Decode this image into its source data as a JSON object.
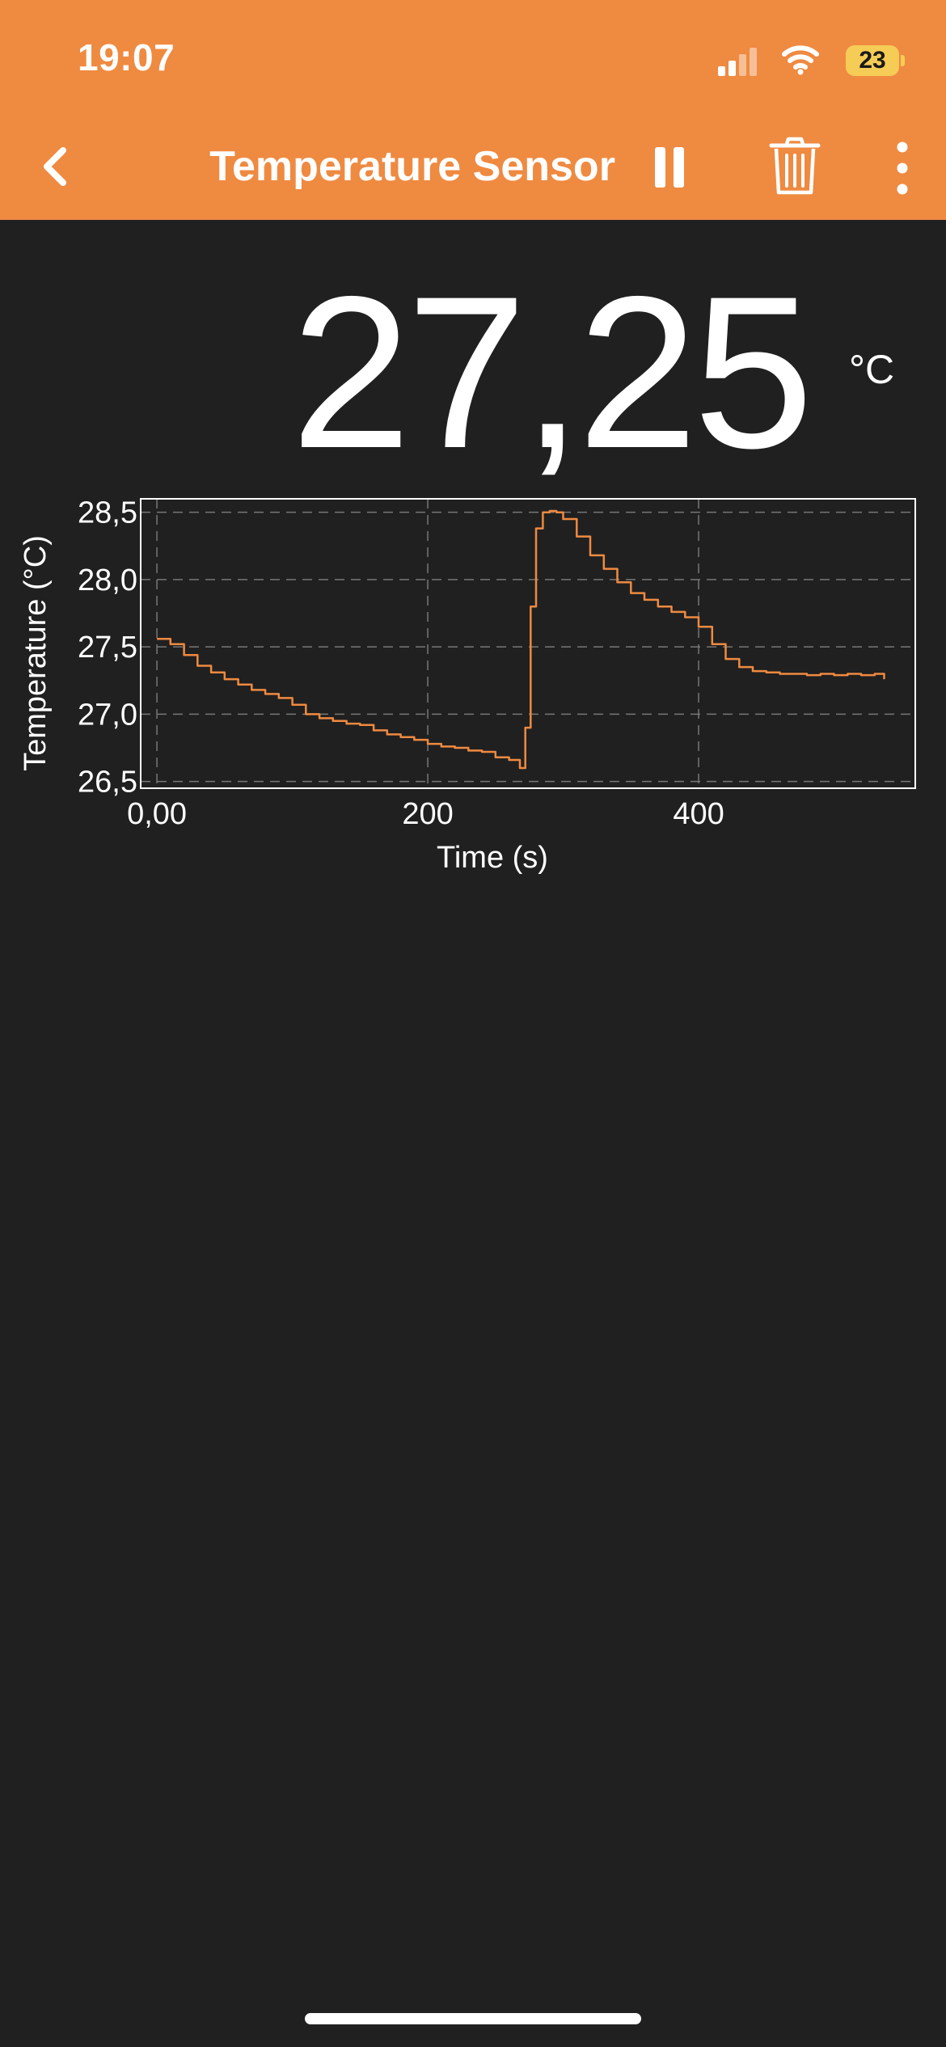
{
  "status_bar": {
    "time": "19:07",
    "battery": "23",
    "icons": [
      "signal-icon",
      "wifi-icon",
      "battery-icon"
    ]
  },
  "nav": {
    "title": "Temperature Sensor",
    "back_icon": "chevron-left-icon",
    "pause_icon": "pause-icon",
    "delete_icon": "trash-icon",
    "more_icon": "more-vertical-icon"
  },
  "reading": {
    "value": "27,25",
    "unit": "°C"
  },
  "colors": {
    "accent": "#EF8A41",
    "background": "#202020",
    "battery": "#F5CC55"
  },
  "chart_data": {
    "type": "line",
    "xlabel": "Time (s)",
    "ylabel": "Temperature (°C)",
    "xlim": [
      -12,
      560
    ],
    "ylim": [
      26.45,
      28.6
    ],
    "x_ticks": [
      0,
      200,
      400
    ],
    "x_tick_labels": [
      "0,00",
      "200",
      "400"
    ],
    "y_ticks": [
      26.5,
      27.0,
      27.5,
      28.0,
      28.5
    ],
    "y_tick_labels": [
      "26,5",
      "27,0",
      "27,5",
      "28,0",
      "28,5"
    ],
    "grid": true,
    "series": [
      {
        "color": "#EF8A41",
        "x": [
          0,
          10,
          20,
          30,
          40,
          50,
          60,
          70,
          80,
          90,
          100,
          110,
          120,
          130,
          140,
          150,
          160,
          170,
          180,
          190,
          200,
          210,
          220,
          230,
          240,
          250,
          260,
          268,
          272,
          276,
          280,
          285,
          290,
          295,
          300,
          310,
          320,
          330,
          340,
          350,
          360,
          370,
          380,
          390,
          400,
          410,
          420,
          430,
          440,
          450,
          460,
          470,
          480,
          490,
          500,
          510,
          520,
          530,
          537
        ],
        "y": [
          27.56,
          27.52,
          27.44,
          27.36,
          27.31,
          27.26,
          27.22,
          27.18,
          27.15,
          27.12,
          27.07,
          27.0,
          26.97,
          26.95,
          26.93,
          26.92,
          26.88,
          26.85,
          26.83,
          26.81,
          26.78,
          26.76,
          26.75,
          26.73,
          26.72,
          26.68,
          26.66,
          26.6,
          26.9,
          27.8,
          28.38,
          28.5,
          28.51,
          28.5,
          28.45,
          28.32,
          28.18,
          28.08,
          27.98,
          27.9,
          27.85,
          27.8,
          27.76,
          27.72,
          27.65,
          27.52,
          27.41,
          27.35,
          27.32,
          27.31,
          27.3,
          27.3,
          27.29,
          27.3,
          27.29,
          27.3,
          27.29,
          27.3,
          27.26
        ]
      }
    ]
  }
}
